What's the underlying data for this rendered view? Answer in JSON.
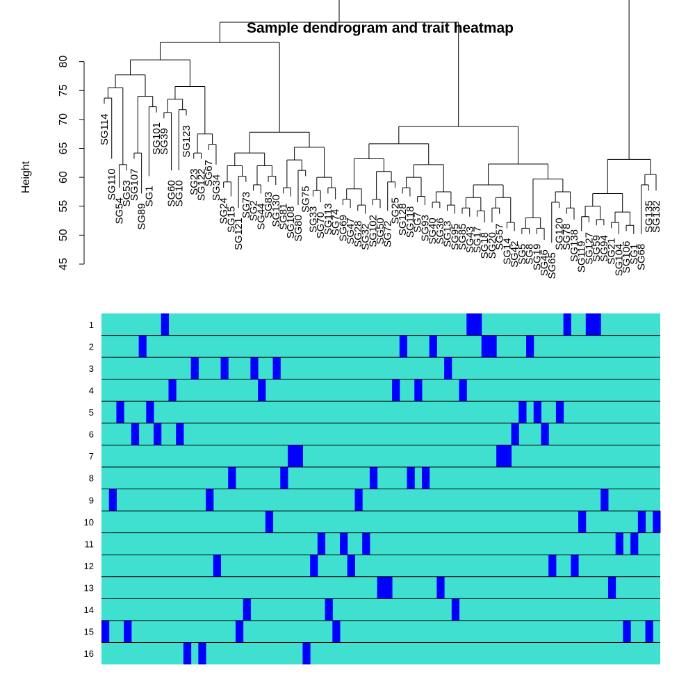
{
  "chart_data": [
    {
      "type": "dendrogram",
      "title": "Sample dendrogram and trait heatmap",
      "ylabel": "Height",
      "ylim": [
        45,
        82
      ],
      "yticks": [
        45,
        50,
        55,
        60,
        65,
        70,
        75,
        80
      ],
      "leaves": [
        {
          "label": "SG114",
          "height": 71.5
        },
        {
          "label": "SG110",
          "height": 62
        },
        {
          "label": "SG54",
          "height": 57
        },
        {
          "label": "SG53",
          "height": 60
        },
        {
          "label": "SG107",
          "height": 62
        },
        {
          "label": "SG89",
          "height": 56
        },
        {
          "label": "SG1",
          "height": 59
        },
        {
          "label": "SG101",
          "height": 70
        },
        {
          "label": "SG39",
          "height": 69
        },
        {
          "label": "SG60",
          "height": 60
        },
        {
          "label": "SG10",
          "height": 60
        },
        {
          "label": "SG123",
          "height": 69.5
        },
        {
          "label": "SG23",
          "height": 62
        },
        {
          "label": "SG122",
          "height": 62
        },
        {
          "label": "SG67",
          "height": 63.5
        },
        {
          "label": "SG34",
          "height": 61
        },
        {
          "label": "SG24",
          "height": 57
        },
        {
          "label": "SG15",
          "height": 55.5
        },
        {
          "label": "SG121",
          "height": 53.5
        },
        {
          "label": "SG73",
          "height": 58
        },
        {
          "label": "SG2",
          "height": 56.5
        },
        {
          "label": "SG44",
          "height": 56
        },
        {
          "label": "SG83",
          "height": 58
        },
        {
          "label": "SG130",
          "height": 57.5
        },
        {
          "label": "SG81",
          "height": 56
        },
        {
          "label": "SG108",
          "height": 55.5
        },
        {
          "label": "SG80",
          "height": 54
        },
        {
          "label": "SG75",
          "height": 59
        },
        {
          "label": "SG33",
          "height": 55.5
        },
        {
          "label": "SG70",
          "height": 54.5
        },
        {
          "label": "SG113",
          "height": 56
        },
        {
          "label": "SG74",
          "height": 55
        },
        {
          "label": "SG69",
          "height": 54
        },
        {
          "label": "SG47",
          "height": 53.5
        },
        {
          "label": "SG28",
          "height": 53
        },
        {
          "label": "SG32",
          "height": 52.5
        },
        {
          "label": "SG102",
          "height": 54
        },
        {
          "label": "SG50",
          "height": 53.5
        },
        {
          "label": "SG72",
          "height": 53
        },
        {
          "label": "SG25",
          "height": 57
        },
        {
          "label": "SG128",
          "height": 56
        },
        {
          "label": "SG118",
          "height": 55.5
        },
        {
          "label": "SG7",
          "height": 54.5
        },
        {
          "label": "SG93",
          "height": 54
        },
        {
          "label": "SG40",
          "height": 53.5
        },
        {
          "label": "SG36",
          "height": 53.5
        },
        {
          "label": "SG13",
          "height": 53
        },
        {
          "label": "SG95",
          "height": 52.5
        },
        {
          "label": "SG85",
          "height": 52.5
        },
        {
          "label": "SG43",
          "height": 52
        },
        {
          "label": "SG17",
          "height": 52
        },
        {
          "label": "SG18",
          "height": 51
        },
        {
          "label": "SG20",
          "height": 51
        },
        {
          "label": "SG57",
          "height": 52.5
        },
        {
          "label": "SG14",
          "height": 50
        },
        {
          "label": "SG42",
          "height": 49.5
        },
        {
          "label": "SG5",
          "height": 49
        },
        {
          "label": "SG8",
          "height": 49
        },
        {
          "label": "SG19",
          "height": 49
        },
        {
          "label": "SG46",
          "height": 48
        },
        {
          "label": "SG65",
          "height": 47.5
        },
        {
          "label": "SG120",
          "height": 53.5
        },
        {
          "label": "SG78",
          "height": 52.5
        },
        {
          "label": "SG138",
          "height": 51.5
        },
        {
          "label": "SG119",
          "height": 49.5
        },
        {
          "label": "SG127",
          "height": 51
        },
        {
          "label": "SG59",
          "height": 50.5
        },
        {
          "label": "SG94",
          "height": 50.5
        },
        {
          "label": "SG21",
          "height": 50
        },
        {
          "label": "SG104",
          "height": 49
        },
        {
          "label": "SG106",
          "height": 49.5
        },
        {
          "label": "SG1b",
          "height": 49
        },
        {
          "label": "SG68",
          "height": 49
        },
        {
          "label": "SG135",
          "height": 56.5
        },
        {
          "label": "SG132",
          "height": 56.5
        }
      ],
      "merges": [
        [
          0,
          1,
          74.5
        ],
        [
          2,
          3,
          61
        ],
        [
          1,
          2,
          63.5
        ],
        [
          4,
          5,
          59
        ],
        [
          3,
          4,
          67
        ],
        [
          1,
          3,
          70
        ],
        [
          0,
          1,
          75
        ],
        [
          7,
          8,
          72.5
        ],
        [
          9,
          10,
          61.5
        ],
        [
          8,
          9,
          69.5
        ],
        [
          11,
          12,
          64.5
        ],
        [
          12,
          13,
          66.5
        ],
        [
          14,
          15,
          71
        ],
        [
          16,
          17,
          59.5
        ],
        [
          18,
          19,
          56
        ],
        [
          17,
          18,
          65.5
        ]
      ]
    },
    {
      "type": "heatmap",
      "rows": [
        "1",
        "2",
        "3",
        "4",
        "5",
        "6",
        "7",
        "8",
        "9",
        "10",
        "11",
        "12",
        "13",
        "14",
        "15",
        "16"
      ],
      "n_columns": 75,
      "colors": {
        "low": "#40E0D0",
        "high": "#0000FF"
      },
      "high_cells": [
        [
          8,
          49,
          50,
          62,
          65,
          66
        ],
        [
          5,
          40,
          44,
          51,
          52,
          57
        ],
        [
          12,
          16,
          20,
          23,
          46
        ],
        [
          9,
          21,
          39,
          42,
          48
        ],
        [
          2,
          6,
          56,
          58,
          61
        ],
        [
          4,
          7,
          10,
          55,
          59
        ],
        [
          25,
          26,
          53,
          54
        ],
        [
          17,
          24,
          36,
          41,
          43
        ],
        [
          1,
          14,
          34,
          67
        ],
        [
          22,
          64,
          72,
          74
        ],
        [
          29,
          32,
          35,
          69,
          71
        ],
        [
          15,
          28,
          33,
          60,
          63
        ],
        [
          37,
          38,
          45,
          68
        ],
        [
          19,
          30,
          47
        ],
        [
          0,
          3,
          18,
          31,
          70,
          73
        ],
        [
          11,
          13,
          27
        ]
      ]
    }
  ]
}
